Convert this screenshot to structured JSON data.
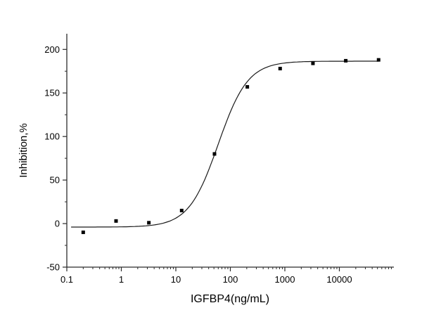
{
  "chart_data": {
    "type": "scatter",
    "title": "",
    "xlabel": "IGFBP4(ng/mL)",
    "ylabel": "Inhibition,%",
    "x_scale": "log",
    "y_scale": "linear",
    "xlim": [
      0.1,
      100000
    ],
    "ylim": [
      -50,
      218
    ],
    "grid": false,
    "legend": "none",
    "x_ticks": [
      {
        "value": 0.1,
        "label": "0.1"
      },
      {
        "value": 1,
        "label": "1"
      },
      {
        "value": 10,
        "label": "10"
      },
      {
        "value": 100,
        "label": "100"
      },
      {
        "value": 1000,
        "label": "1000"
      },
      {
        "value": 10000,
        "label": "10000"
      }
    ],
    "y_ticks": [
      {
        "value": -50,
        "label": "-50"
      },
      {
        "value": 0,
        "label": "0"
      },
      {
        "value": 50,
        "label": "50"
      },
      {
        "value": 100,
        "label": "100"
      },
      {
        "value": 150,
        "label": "150"
      },
      {
        "value": 200,
        "label": "200"
      }
    ],
    "y_minor_start": -25,
    "y_minor_step": 50,
    "points": [
      {
        "x": 0.2,
        "y": -10
      },
      {
        "x": 0.8,
        "y": 3
      },
      {
        "x": 3.2,
        "y": 1
      },
      {
        "x": 12.8,
        "y": 15
      },
      {
        "x": 51.2,
        "y": 80
      },
      {
        "x": 204.8,
        "y": 157
      },
      {
        "x": 819.2,
        "y": 178
      },
      {
        "x": 3276.8,
        "y": 184
      },
      {
        "x": 13107.2,
        "y": 187
      },
      {
        "x": 52428.8,
        "y": 188
      }
    ],
    "fit": {
      "model": "4PL",
      "bottom": -4,
      "top": 186.5,
      "ec50": 60,
      "hill": 1.6,
      "x_start": 0.12,
      "x_end": 52000
    },
    "marker": {
      "shape": "square",
      "size": 5
    },
    "colors": {
      "line": "#1a1a1a",
      "marker": "#000000",
      "axis": "#2b2b2b",
      "text": "#000000",
      "background": "#ffffff"
    }
  }
}
